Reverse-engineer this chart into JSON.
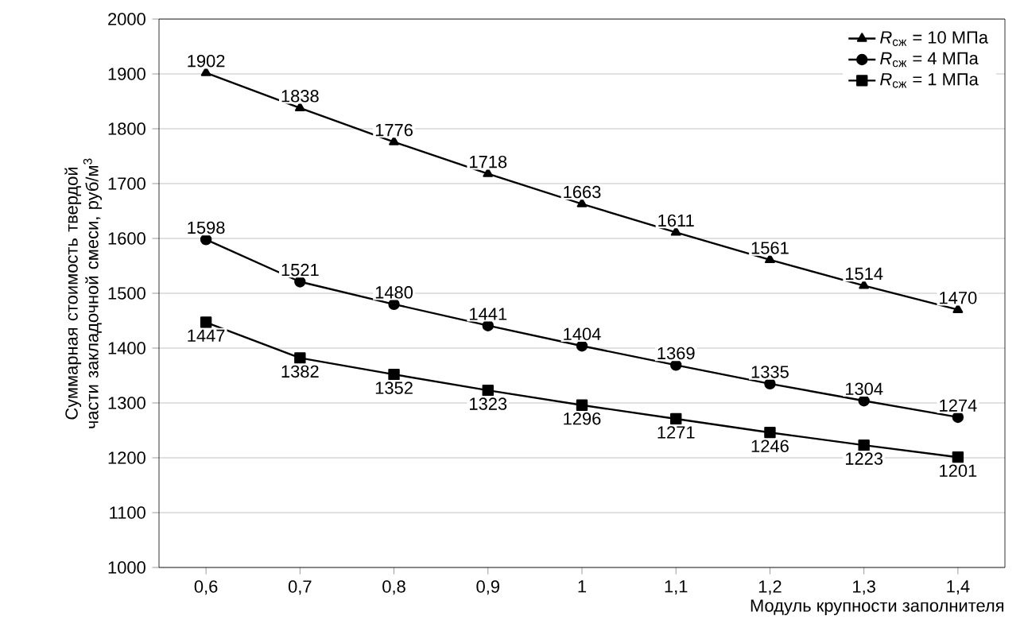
{
  "chart_data": {
    "type": "line",
    "xlabel": "Модуль крупности заполнителя",
    "ylabel": "Суммарная стоимость твердой части закладочной смеси, руб/м$^{3}$",
    "x": [
      0.6,
      0.7,
      0.8,
      0.9,
      1.0,
      1.1,
      1.2,
      1.3,
      1.4
    ],
    "series": [
      {
        "name": "*R*$_{сж}$ = 10 МПа",
        "color": "#000000",
        "marker": "triangle",
        "values": [
          1902,
          1838,
          1776,
          1718,
          1663,
          1611,
          1561,
          1514,
          1470
        ]
      },
      {
        "name": "*R*$_{сж}$ = 4 МПа",
        "color": "#000000",
        "marker": "circle",
        "values": [
          1598,
          1521,
          1480,
          1441,
          1404,
          1369,
          1335,
          1304,
          1274
        ]
      },
      {
        "name": "*R*$_{сж}$ = 1 МПа",
        "color": "#000000",
        "marker": "square",
        "values": [
          1447,
          1382,
          1352,
          1323,
          1296,
          1271,
          1246,
          1223,
          1201
        ]
      }
    ],
    "xlim": [
      0.55,
      1.45
    ],
    "xticks": [
      {
        "value": 0.6,
        "label": "0,6"
      },
      {
        "value": 0.7,
        "label": "0,7"
      },
      {
        "value": 0.8,
        "label": "0,8"
      },
      {
        "value": 0.9,
        "label": "0,9"
      },
      1,
      {
        "value": 1.1,
        "label": "1,1"
      },
      {
        "value": 1.2,
        "label": "1,2"
      },
      {
        "value": 1.3,
        "label": "1,3"
      },
      {
        "value": 1.4,
        "label": "1,4"
      }
    ],
    "ylim": [
      1000,
      2000
    ],
    "yticks": [
      1000,
      1100,
      1200,
      1300,
      1400,
      1500,
      1600,
      1700,
      1800,
      1900,
      2000
    ],
    "grid": "y",
    "legend": "top right",
    "line_style": "solid",
    "data_labels": true
  }
}
